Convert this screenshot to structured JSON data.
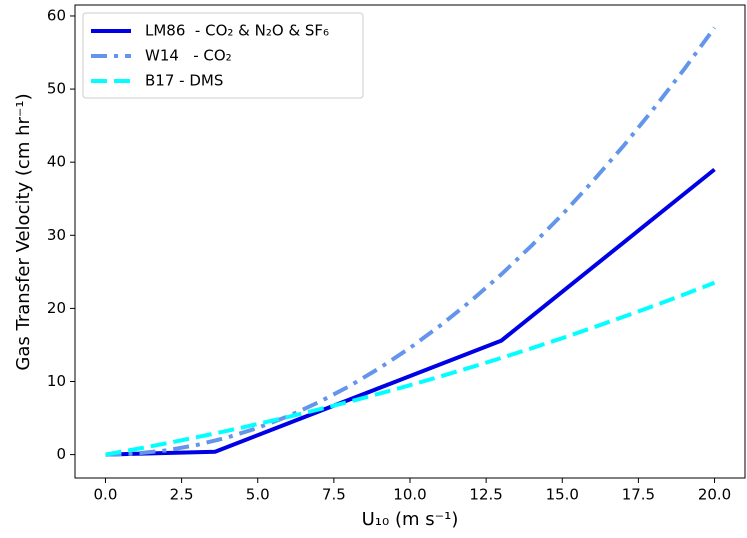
{
  "chart_data": {
    "type": "line",
    "xlabel": "U₁₀ (m s⁻¹)",
    "ylabel": "Gas Transfer Velocity (cm hr⁻¹)",
    "xlim": [
      -1,
      21
    ],
    "ylim": [
      -3.2,
      61.5
    ],
    "xticks": [
      {
        "value": 0,
        "label": "0.0"
      },
      {
        "value": 2.5,
        "label": "2.5"
      },
      {
        "value": 5,
        "label": "5.0"
      },
      {
        "value": 7.5,
        "label": "7.5"
      },
      {
        "value": 10,
        "label": "10.0"
      },
      {
        "value": 12.5,
        "label": "12.5"
      },
      {
        "value": 15,
        "label": "15.0"
      },
      {
        "value": 17.5,
        "label": "17.5"
      },
      {
        "value": 20,
        "label": "20.0"
      }
    ],
    "yticks": [
      0,
      10,
      20,
      30,
      40,
      50,
      60
    ],
    "legend": "upper left",
    "series": [
      {
        "name": "LM86  - CO₂ & N₂O & SF₆",
        "color": "#0000e6",
        "linestyle": "solid",
        "x": [
          0,
          3.6,
          13,
          20
        ],
        "values": [
          0,
          0.4,
          15.6,
          39
        ]
      },
      {
        "name": "W14   - CO₂",
        "color": "#6495ed",
        "linestyle": "dashdot",
        "x": [
          0,
          1,
          2,
          3,
          4,
          5,
          6,
          7,
          8,
          9,
          10,
          11,
          12,
          13,
          14,
          15,
          16,
          17,
          18,
          19,
          20
        ],
        "values": [
          0,
          0.15,
          0.58,
          1.31,
          2.34,
          3.65,
          5.26,
          7.15,
          9.34,
          11.83,
          14.6,
          17.67,
          21.02,
          24.67,
          28.62,
          32.85,
          37.38,
          42.19,
          47.3,
          52.71,
          58.4
        ]
      },
      {
        "name": "B17 - DMS",
        "color": "#00ffff",
        "linestyle": "dashed",
        "x": [
          0,
          1,
          2,
          3,
          4,
          5,
          6,
          7,
          8,
          9,
          10,
          11,
          12,
          13,
          14,
          15,
          16,
          17,
          18,
          19,
          20
        ],
        "values": [
          0,
          0.75,
          1.54,
          2.38,
          3.26,
          4.19,
          5.16,
          6.18,
          7.24,
          8.35,
          9.5,
          10.7,
          11.94,
          13.23,
          14.56,
          15.94,
          17.36,
          18.83,
          20.34,
          21.9,
          23.5
        ]
      }
    ]
  }
}
